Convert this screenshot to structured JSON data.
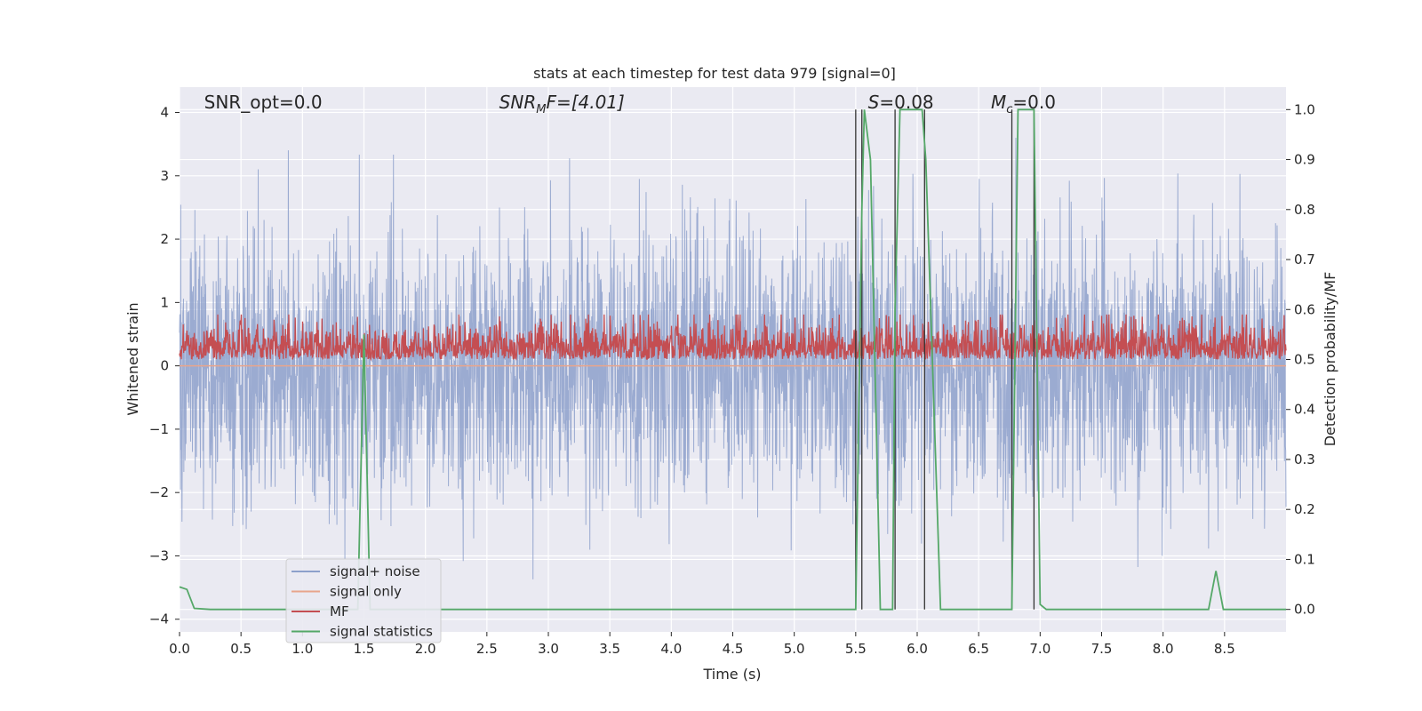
{
  "chart_data": {
    "type": "line",
    "title": "stats at each timestep for test data 979 [signal=0]",
    "xlabel": "Time (s)",
    "ylabel_left": "Whitened strain",
    "ylabel_right": "Detection probability/MF",
    "xlim": [
      0.0,
      9.0
    ],
    "ylim_left": [
      -4.2,
      4.4
    ],
    "ylim_right": [
      -0.045,
      1.045
    ],
    "x_ticks": [
      0.0,
      0.5,
      1.0,
      1.5,
      2.0,
      2.5,
      3.0,
      3.5,
      4.0,
      4.5,
      5.0,
      5.5,
      6.0,
      6.5,
      7.0,
      7.5,
      8.0,
      8.5
    ],
    "x_tick_labels": [
      "0.0",
      "0.5",
      "1.0",
      "1.5",
      "2.0",
      "2.5",
      "3.0",
      "3.5",
      "4.0",
      "4.5",
      "5.0",
      "5.5",
      "6.0",
      "6.5",
      "7.0",
      "7.5",
      "8.0",
      "8.5"
    ],
    "y_left_ticks": [
      -4,
      -3,
      -2,
      -1,
      0,
      1,
      2,
      3,
      4
    ],
    "y_left_tick_labels": [
      "−4",
      "−3",
      "−2",
      "−1",
      "0",
      "1",
      "2",
      "3",
      "4"
    ],
    "y_right_ticks": [
      0.0,
      0.1,
      0.2,
      0.3,
      0.4,
      0.5,
      0.6,
      0.7,
      0.8,
      0.9,
      1.0
    ],
    "y_right_tick_labels": [
      "0.0",
      "0.1",
      "0.2",
      "0.3",
      "0.4",
      "0.5",
      "0.6",
      "0.7",
      "0.8",
      "0.9",
      "1.0"
    ],
    "grid": true,
    "legend_position": "lower-left",
    "annotations": [
      {
        "text": "SNR_opt=0.0",
        "x": 0.2
      },
      {
        "text": "SNR",
        "sub": "M",
        "tail": "F=[4.01]",
        "x": 2.6,
        "italic": true
      },
      {
        "text": "S",
        "tail": "=0.08",
        "x": 5.6,
        "italic": true
      },
      {
        "text": "M",
        "sub": "c",
        "tail": "=0.0",
        "x": 6.6,
        "italic": true
      }
    ],
    "series": [
      {
        "name": "signal+ noise",
        "color": "#8da0cb",
        "kind": "noise",
        "description": "whitened strain noise, amplitude approx ±3.5 spanning full range"
      },
      {
        "name": "signal only",
        "color": "#e8a58c",
        "kind": "flat",
        "value": 0.0
      },
      {
        "name": "MF",
        "color": "#c44e52",
        "kind": "mf_band",
        "range_right_axis": [
          0.5,
          0.59
        ]
      },
      {
        "name": "signal statistics",
        "color": "#55a868",
        "kind": "line",
        "axis": "right",
        "x": [
          0.0,
          0.06,
          0.12,
          0.25,
          1.45,
          1.5,
          1.55,
          5.5,
          5.55,
          5.57,
          5.62,
          5.7,
          5.8,
          5.82,
          5.86,
          6.04,
          6.07,
          6.19,
          6.77,
          6.82,
          6.95,
          7.0,
          7.05,
          8.37,
          8.43,
          8.49,
          9.0
        ],
        "y": [
          0.045,
          0.04,
          0.002,
          0.0,
          0.0,
          0.55,
          0.0,
          0.0,
          0.8,
          1.0,
          0.9,
          0.0,
          0.0,
          0.6,
          1.0,
          1.0,
          0.9,
          0.0,
          0.0,
          1.0,
          1.0,
          0.01,
          0.0,
          0.0,
          0.077,
          0.0,
          0.0
        ]
      }
    ],
    "vlines": {
      "color": "#333333",
      "x": [
        5.5,
        5.55,
        5.82,
        6.06,
        6.77,
        6.95
      ],
      "y_right_range": [
        0.0,
        1.0
      ]
    }
  }
}
